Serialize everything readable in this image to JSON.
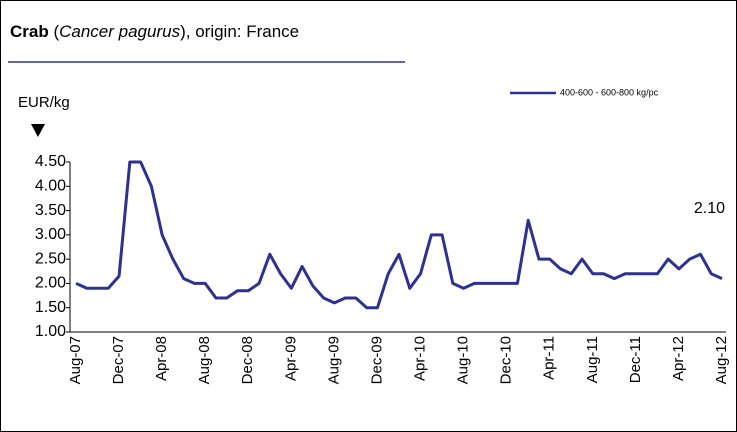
{
  "chart_data": {
    "type": "line",
    "title": [
      "Crab",
      " (",
      "Cancer pagurus",
      "), ",
      "origin: France"
    ],
    "y_label": "EUR/kg",
    "categories": [
      "Aug-07",
      null,
      null,
      null,
      "Dec-07",
      null,
      null,
      null,
      "Apr-08",
      null,
      null,
      null,
      "Aug-08",
      null,
      null,
      null,
      "Dec-08",
      null,
      null,
      null,
      "Apr-09",
      null,
      null,
      null,
      "Aug-09",
      null,
      null,
      null,
      "Dec-09",
      null,
      null,
      null,
      "Apr-10",
      null,
      null,
      null,
      "Aug-10",
      null,
      null,
      null,
      "Dec-10",
      null,
      null,
      null,
      "Apr-11",
      null,
      null,
      null,
      "Aug-11",
      null,
      null,
      null,
      "Dec-11",
      null,
      null,
      null,
      "Apr-12",
      null,
      null,
      null,
      "Aug-12"
    ],
    "series": [
      {
        "name": "400-600 - 600-800  kg/pc",
        "color": "#2e3192",
        "values": [
          2.0,
          1.9,
          1.9,
          1.9,
          2.15,
          4.5,
          4.5,
          4.0,
          3.0,
          2.5,
          2.1,
          2.0,
          2.0,
          1.7,
          1.7,
          1.85,
          1.85,
          2.0,
          2.6,
          2.2,
          1.9,
          2.35,
          1.95,
          1.7,
          1.6,
          1.7,
          1.7,
          1.5,
          1.5,
          2.2,
          2.6,
          1.9,
          2.2,
          3.0,
          3.0,
          2.0,
          1.9,
          2.0,
          2.0,
          2.0,
          2.0,
          2.0,
          3.3,
          2.5,
          2.5,
          2.3,
          2.2,
          2.5,
          2.2,
          2.2,
          2.1,
          2.2,
          2.2,
          2.2,
          2.2,
          2.5,
          2.3,
          2.5,
          2.6,
          2.2,
          2.1
        ],
        "value_labels": [
          null,
          null,
          null,
          null,
          null,
          null,
          null,
          null,
          null,
          null,
          null,
          null,
          null,
          null,
          null,
          null,
          null,
          null,
          null,
          null,
          null,
          null,
          null,
          null,
          null,
          null,
          null,
          null,
          null,
          null,
          null,
          null,
          null,
          null,
          null,
          null,
          null,
          null,
          null,
          null,
          null,
          null,
          null,
          null,
          null,
          null,
          null,
          null,
          null,
          null,
          null,
          null,
          null,
          null,
          null,
          null,
          null,
          null,
          null,
          null,
          "2.10"
        ]
      }
    ],
    "ylim": [
      1,
      4.5
    ],
    "yticks": [
      {
        "value": 1,
        "label": "1.00"
      },
      {
        "value": 1.5,
        "label": "1.50"
      },
      {
        "value": 2,
        "label": "2.00"
      },
      {
        "value": 2.5,
        "label": "2.50"
      },
      {
        "value": 3,
        "label": "3.00"
      },
      {
        "value": 3.5,
        "label": "3.50"
      },
      {
        "value": 4,
        "label": "4.00"
      },
      {
        "value": 4.5,
        "label": "4.50"
      }
    ],
    "grid": false,
    "legend": "top-right"
  }
}
